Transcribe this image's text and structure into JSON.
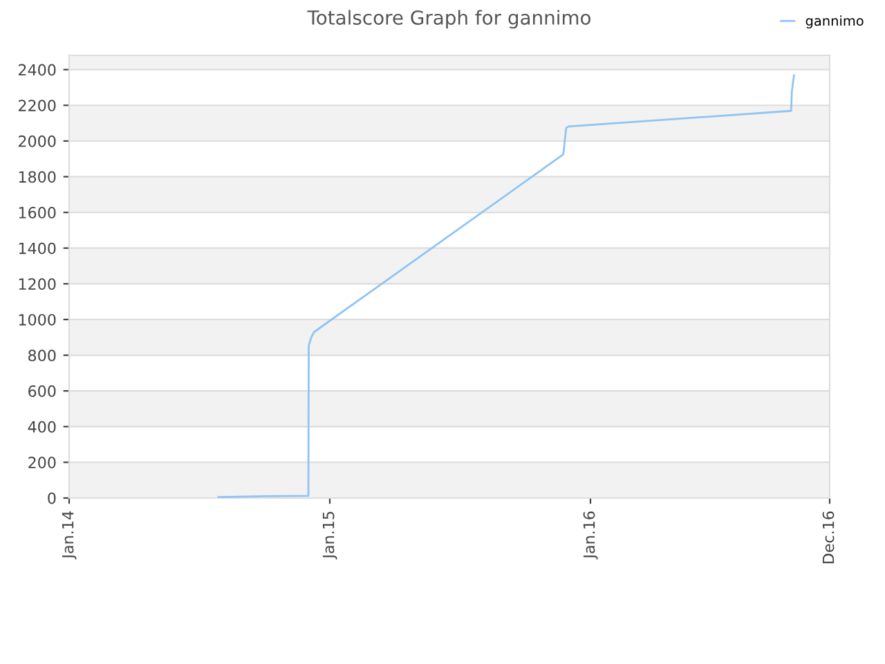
{
  "chart_data": {
    "type": "line",
    "title": "Totalscore Graph for gannimo",
    "series": [
      {
        "name": "gannimo",
        "color": "#90c4f4",
        "x": [
          "2014-07-29",
          "2014-10-03",
          "2014-12-02",
          "2014-12-02T12:00",
          "2014-12-06",
          "2014-12-10",
          "2015-11-24",
          "2015-11-28",
          "2015-12-01",
          "2016-10-08",
          "2016-10-09",
          "2016-10-12"
        ],
        "values": [
          5,
          10,
          12,
          854,
          900,
          930,
          1925,
          2073,
          2081,
          2169,
          2277,
          2368
        ]
      }
    ],
    "xlim": [
      "2014-01-01",
      "2016-12-01"
    ],
    "xticks": [
      {
        "value": "2014-01-01",
        "label": "Jan.14"
      },
      {
        "value": "2015-01-01",
        "label": "Jan.15"
      },
      {
        "value": "2016-01-01",
        "label": "Jan.16"
      },
      {
        "value": "2016-12-01",
        "label": "Dec.16"
      }
    ],
    "ylim": [
      0,
      2480
    ],
    "yticks": [
      0,
      200,
      400,
      600,
      800,
      1000,
      1200,
      1400,
      1600,
      1800,
      2000,
      2200,
      2400
    ],
    "grid": "y",
    "legend": "top right",
    "marker": "none",
    "line_style": "solid"
  }
}
